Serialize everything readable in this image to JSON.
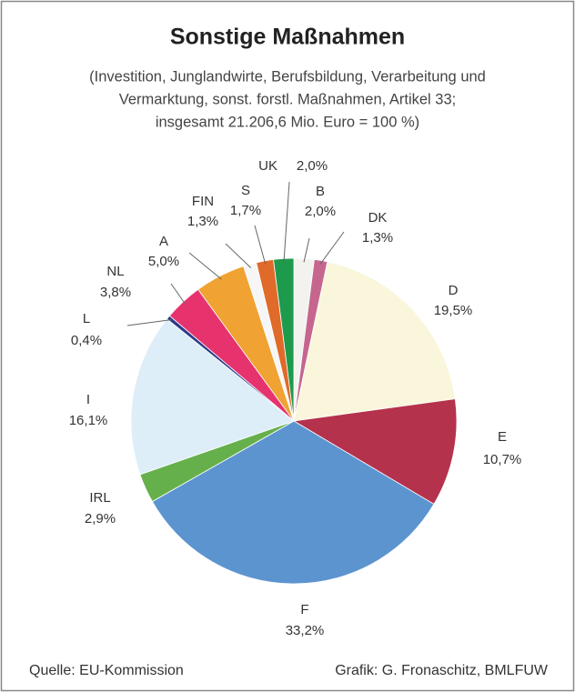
{
  "chart_data": {
    "type": "pie",
    "title": "Sonstige Maßnahmen",
    "subtitle": [
      "(Investition, Junglandwirte, Berufsbildung, Verarbeitung und",
      "Vermarktung, sonst. forstl. Maßnahmen, Artikel 33;",
      "insgesamt 21.206,6 Mio. Euro = 100 %)"
    ],
    "categories": [
      "B",
      "DK",
      "D",
      "E",
      "F",
      "IRL",
      "I",
      "L",
      "NL",
      "A",
      "FIN",
      "S",
      "UK"
    ],
    "values": [
      2.0,
      1.3,
      19.5,
      10.7,
      33.2,
      2.9,
      16.1,
      0.4,
      3.8,
      5.0,
      1.3,
      1.7,
      2.0
    ],
    "value_labels": [
      "2,0%",
      "1,3%",
      "19,5%",
      "10,7%",
      "33,2%",
      "2,9%",
      "16,1%",
      "0,4%",
      "3,8%",
      "5,0%",
      "1,3%",
      "1,7%",
      "2,0%"
    ],
    "colors": [
      "#f2f2ee",
      "#c6668e",
      "#faf6dc",
      "#b5324c",
      "#5c94d0",
      "#66b04c",
      "#ddeef8",
      "#2e3a8a",
      "#e6336e",
      "#f0a232",
      "#f6f6f6",
      "#e06a2a",
      "#1e9a4c"
    ],
    "source": "Quelle: EU-Kommission",
    "credit": "Grafik: G. Fronaschitz, BMLFUW"
  }
}
